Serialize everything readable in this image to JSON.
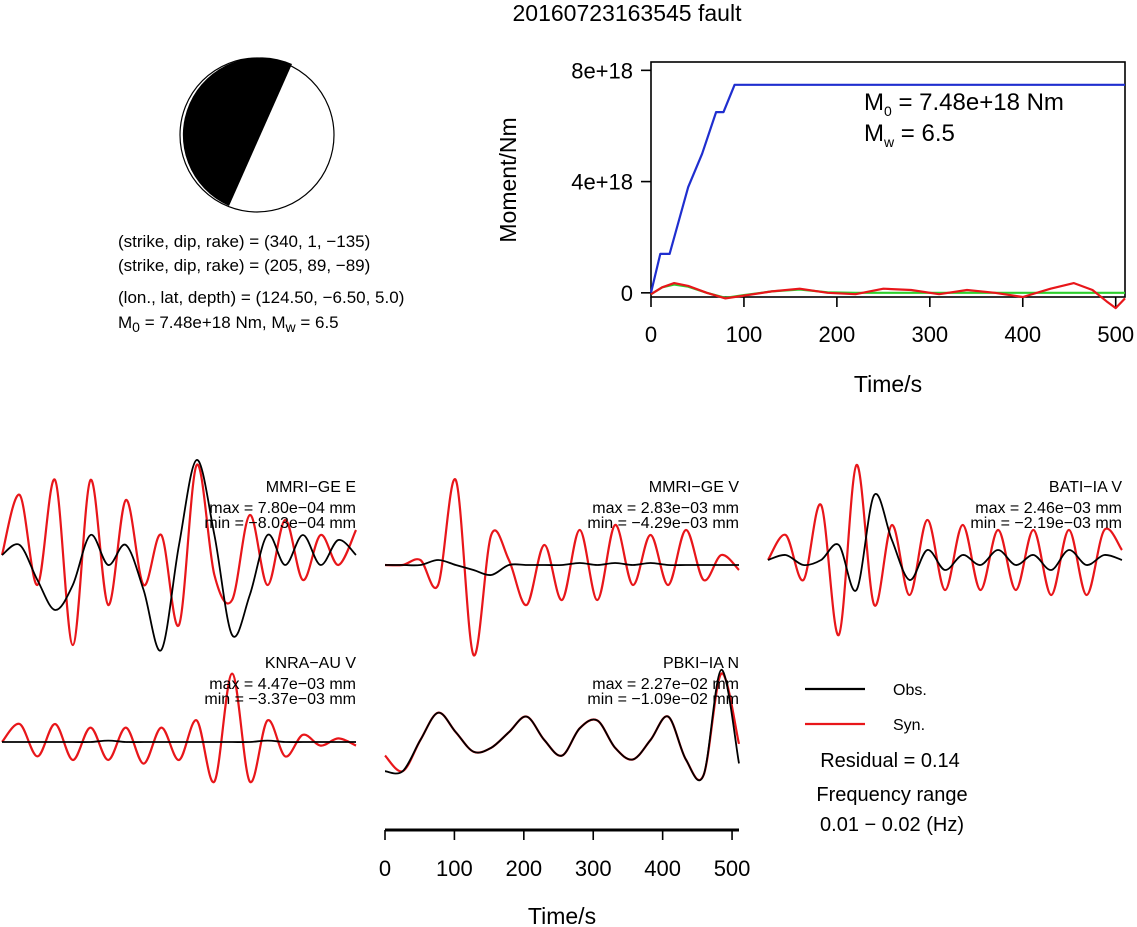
{
  "title": "20160723163545 fault",
  "mechanism": {
    "lines": [
      "(strike, dip, rake) = (340, 1, −135)",
      "(strike, dip, rake) = (205, 89, −89)",
      "(lon., lat, depth) = (124.50, −6.50, 5.0)"
    ],
    "moment_line": {
      "m0_label": "M",
      "m0_sub": "0",
      "m0_value": " = 7.48e+18 Nm, M",
      "mw_sub": "w",
      "mw_value": " = 6.5"
    }
  },
  "moment_annotation": {
    "m0_label": "M",
    "m0_sub": "0",
    "m0_value": " = 7.48e+18 Nm",
    "mw_label": "M",
    "mw_sub": "w",
    "mw_value": " = 6.5"
  },
  "legend": {
    "obs": "Obs.",
    "syn": "Syn."
  },
  "residual": "Residual = 0.14",
  "frequency": {
    "label": "Frequency range",
    "value": "0.01 − 0.02 (Hz)"
  },
  "colors": {
    "observed": "#000000",
    "synthetic": "#e8161a",
    "cumulative": "#1f2ecf",
    "green": "#2dcf2d"
  },
  "chart_data": [
    {
      "type": "line",
      "title": "",
      "xlabel": "Time/s",
      "ylabel": "Moment/Nm",
      "xlim": [
        0,
        510
      ],
      "ylim": [
        -1.5e+17,
        8.3e+18
      ],
      "xticks": [
        0,
        100,
        200,
        300,
        400,
        500
      ],
      "xtick_labels": [
        "0",
        "100",
        "200",
        "300",
        "400",
        "500"
      ],
      "yticks": [
        0,
        4e+18,
        8e+18
      ],
      "ytick_labels": [
        "0",
        "4e+18",
        "8e+18"
      ],
      "series": [
        {
          "color": "blue",
          "x": [
            0,
            10,
            20,
            30,
            40,
            55,
            70,
            78,
            90,
            510
          ],
          "values": [
            0,
            1.4e+18,
            1.4e+18,
            2.6e+18,
            3.8e+18,
            5e+18,
            6.5e+18,
            6.5e+18,
            7.48e+18,
            7.48e+18
          ]
        },
        {
          "color": "red",
          "x": [
            0,
            12,
            25,
            40,
            60,
            80,
            100,
            130,
            160,
            190,
            220,
            250,
            280,
            310,
            340,
            370,
            400,
            430,
            455,
            475,
            490,
            500,
            510
          ],
          "values": [
            -5e+16,
            2e+17,
            3.5e+17,
            2.5e+17,
            0.0,
            -2e+17,
            -1e+17,
            5e+16,
            1.5e+17,
            0.0,
            -5e+16,
            1.5e+17,
            1e+17,
            -5e+16,
            1e+17,
            0.0,
            -1.5e+17,
            1.5e+17,
            3.5e+17,
            1e+17,
            -3e+17,
            -5.5e+17,
            -2e+17
          ]
        },
        {
          "color": "green",
          "x": [
            0,
            12,
            25,
            40,
            60,
            80,
            100,
            130,
            160,
            190,
            220,
            510
          ],
          "values": [
            -5e+16,
            2e+17,
            3e+17,
            2.2e+17,
            0.0,
            -1.8e+17,
            -8e+16,
            5e+16,
            1.2e+17,
            2e+16,
            0.0,
            0.0
          ]
        }
      ]
    },
    {
      "type": "line",
      "xlabel": "Time/s",
      "xlim": [
        0,
        510
      ],
      "xticks": [
        0,
        100,
        200,
        300,
        400,
        500
      ],
      "xtick_labels": [
        "0",
        "100",
        "200",
        "300",
        "400",
        "500"
      ],
      "stations": [
        {
          "name": "MMRI−GE E",
          "max": "max = 7.80e−04 mm",
          "min": "min = −8.03e−04 mm",
          "obs": [
            0,
            0.1,
            -0.25,
            -0.55,
            -0.3,
            0.2,
            -0.1,
            0.1,
            -0.35,
            -0.95,
            0.1,
            0.95,
            0.2,
            -0.8,
            -0.4,
            0.2,
            -0.1,
            0.2,
            -0.1,
            0.15,
            0.0
          ],
          "syn": [
            0,
            0.6,
            -0.3,
            0.75,
            -0.9,
            0.75,
            -0.5,
            0.55,
            -0.3,
            0.2,
            -0.7,
            0.9,
            -0.2,
            -0.45,
            0.4,
            -0.3,
            0.35,
            -0.25,
            0.2,
            -0.1,
            0.25
          ]
        },
        {
          "name": "MMRI−GE V",
          "max": "max = 2.83e−03 mm",
          "min": "min = −4.29e−03 mm",
          "obs": [
            0,
            0,
            0,
            0.05,
            0,
            -0.05,
            -0.1,
            0,
            0,
            0,
            0,
            0.02,
            0,
            0.02,
            0,
            0.02,
            0,
            0,
            0,
            0,
            0
          ],
          "syn": [
            0,
            0,
            0.05,
            -0.2,
            0.85,
            -0.9,
            0.3,
            0.05,
            -0.4,
            0.2,
            -0.35,
            0.35,
            -0.35,
            0.4,
            -0.2,
            0.3,
            -0.2,
            0.35,
            -0.15,
            0.1,
            -0.05
          ]
        },
        {
          "name": "BATI−IA V",
          "max": "max = 2.46e−03 mm",
          "min": "min = −2.19e−03 mm",
          "obs": [
            0,
            0.05,
            -0.05,
            0,
            0.15,
            -0.3,
            0.65,
            0.2,
            -0.2,
            0.1,
            -0.1,
            0.05,
            -0.05,
            0.1,
            -0.05,
            0.05,
            -0.1,
            0.1,
            -0.05,
            0.05,
            0
          ],
          "syn": [
            0,
            0.25,
            -0.2,
            0.55,
            -0.75,
            0.95,
            -0.45,
            0.35,
            -0.35,
            0.4,
            -0.3,
            0.35,
            -0.3,
            0.3,
            -0.3,
            0.3,
            -0.35,
            0.3,
            -0.35,
            0.3,
            0.1
          ]
        },
        {
          "name": "KNRA−AU V",
          "max": "max = 4.47e−03 mm",
          "min": "min = −3.37e−03 mm",
          "obs": [
            0,
            0,
            0,
            0,
            0,
            0,
            0.02,
            0,
            0,
            0,
            0,
            0,
            0,
            0,
            0,
            0.02,
            0,
            0,
            0,
            0,
            0
          ],
          "syn": [
            0,
            0.25,
            -0.2,
            0.25,
            -0.25,
            0.2,
            -0.25,
            0.2,
            -0.3,
            0.2,
            -0.25,
            0.3,
            -0.55,
            0.95,
            -0.55,
            0.3,
            -0.2,
            0.1,
            -0.05,
            0.05,
            -0.05
          ]
        },
        {
          "name": "PBKI−IA N",
          "max": "max = 2.27e−02 mm",
          "min": "min = −1.09e−02 mm",
          "obs": [
            -0.4,
            -0.4,
            0.0,
            0.35,
            0.1,
            -0.15,
            -0.1,
            0.1,
            0.3,
            0.0,
            -0.2,
            0.15,
            0.25,
            -0.1,
            -0.25,
            0.0,
            0.3,
            -0.25,
            -0.45,
            0.9,
            -0.3
          ],
          "syn": [
            -0.2,
            -0.4,
            0.0,
            0.35,
            0.1,
            -0.15,
            -0.1,
            0.1,
            0.3,
            0.0,
            -0.2,
            0.15,
            0.25,
            -0.1,
            -0.25,
            0.0,
            0.3,
            -0.25,
            -0.45,
            0.85,
            -0.05
          ]
        }
      ]
    }
  ]
}
